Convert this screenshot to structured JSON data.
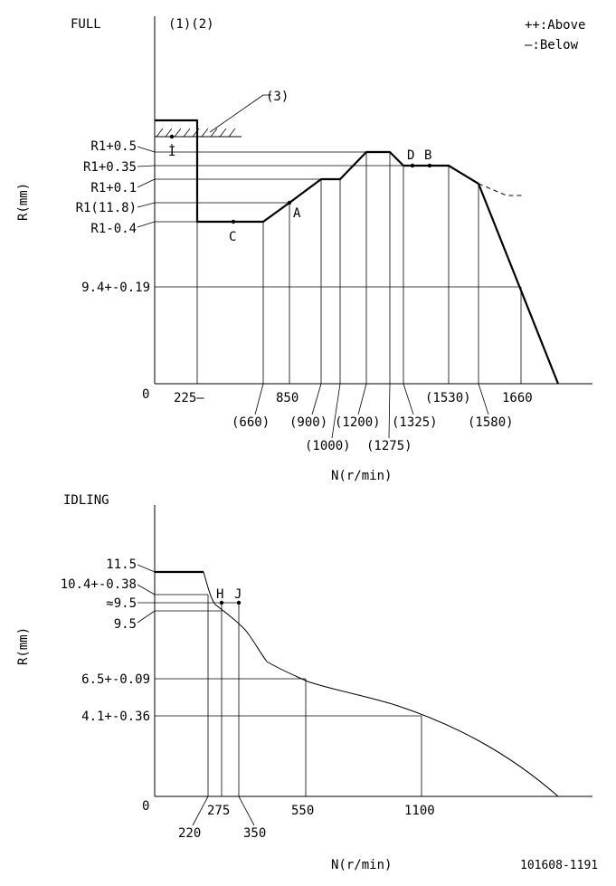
{
  "legend": {
    "above": "++:Above",
    "below": "—:Below"
  },
  "full": {
    "title": "FULL",
    "markers": "(1)(2)",
    "callout3": "(3)",
    "y_axis": "R(mm)",
    "x_axis": "N(r/min)",
    "origin": "0",
    "y_labels": [
      "R1+0.5",
      "R1+0.35",
      "R1+0.1",
      "R1(11.8)",
      "R1-0.4",
      "9.4+-0.19"
    ],
    "x_labels_row1": [
      "225—",
      "850",
      "(1530)",
      "1660"
    ],
    "x_labels_row2": [
      "(660)",
      "(900)",
      "(1200)",
      "(1325)",
      "(1580)"
    ],
    "x_labels_row3": [
      "(1000)",
      "(1275)"
    ],
    "points": {
      "I": "I",
      "A": "A",
      "B": "B",
      "C": "C",
      "D": "D"
    }
  },
  "idling": {
    "title": "IDLING",
    "y_axis": "R(mm)",
    "x_axis": "N(r/min)",
    "origin": "0",
    "y_labels": [
      "11.5",
      "10.4+-0.38",
      "≈9.5",
      "9.5",
      "6.5+-0.09",
      "4.1+-0.36"
    ],
    "x_labels": [
      "220",
      "275",
      "350",
      "550",
      "1100"
    ],
    "points": {
      "H": "H",
      "J": "J"
    }
  },
  "doc_id": "101608-1191"
}
